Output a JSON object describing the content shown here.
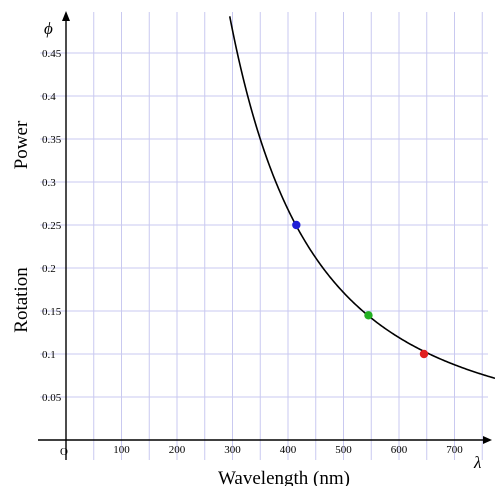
{
  "chart_data": {
    "type": "scatter",
    "xlabel": "Wavelength (nm)",
    "ylabel_parts": [
      "Rotation",
      "Power"
    ],
    "x_symbol": "λ",
    "y_symbol": "ϕ",
    "origin_label": "O",
    "xlim": [
      -50,
      780
    ],
    "ylim": [
      -0.02,
      0.5
    ],
    "x_ticks": [
      100,
      200,
      300,
      400,
      500,
      600,
      700
    ],
    "y_ticks": [
      0.05,
      0.1,
      0.15,
      0.2,
      0.25,
      0.3,
      0.35,
      0.4,
      0.45
    ],
    "x_tick_labels": [
      "100",
      "200",
      "300",
      "400",
      "500",
      "600",
      "700"
    ],
    "y_tick_labels": [
      "0.05",
      "0.1",
      "0.15",
      "0.2",
      "0.25",
      "0.3",
      "0.35",
      "0.4",
      "0.45"
    ],
    "grid": true,
    "curve": {
      "description": "phi = k / lambda^2",
      "k": 42875,
      "x_start": 295,
      "x_end": 780
    },
    "series": [
      {
        "x": [
          415
        ],
        "y": [
          0.25
        ],
        "color": "#1f1fd6"
      },
      {
        "x": [
          545
        ],
        "y": [
          0.145
        ],
        "color": "#23b023"
      },
      {
        "x": [
          645
        ],
        "y": [
          0.1
        ],
        "color": "#e01f1f"
      }
    ]
  },
  "colors": {
    "grid": "#c9c9f0",
    "axis": "#000000",
    "curve": "#000000"
  }
}
